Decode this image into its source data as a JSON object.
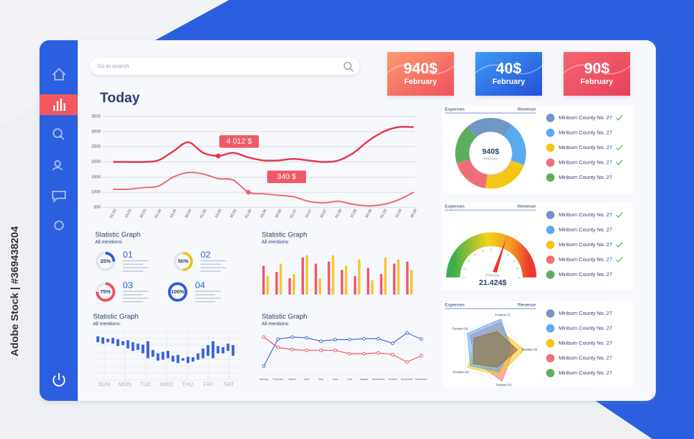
{
  "watermark": "Adobe Stock | #369438204",
  "search_placeholder": "Go to search",
  "cards": [
    {
      "value": "940$",
      "label": "February"
    },
    {
      "value": "40$",
      "label": "February"
    },
    {
      "value": "90$",
      "label": "February"
    }
  ],
  "main_chart": {
    "title": "Today",
    "ylim": [
      500,
      3500
    ],
    "yticks": [
      500,
      1000,
      1500,
      2000,
      2500,
      3000,
      3500
    ],
    "x": [
      "01.03",
      "15.03",
      "30.03",
      "01.04",
      "15.04",
      "30.04",
      "01.05",
      "15.05",
      "30.05",
      "01.06",
      "15.06",
      "30.06",
      "01.07",
      "15.07",
      "30.07",
      "01.08",
      "15.08",
      "30.08",
      "01.09",
      "15.09",
      "30.09"
    ],
    "series": [
      {
        "color": "#e6354b",
        "values": [
          2000,
          2000,
          2000,
          2050,
          2350,
          2650,
          2300,
          2200,
          2300,
          2150,
          2050,
          2050,
          2100,
          2050,
          2000,
          2050,
          2300,
          2700,
          3000,
          3150,
          3150
        ]
      },
      {
        "color": "#ee6472",
        "values": [
          1100,
          1100,
          1150,
          1200,
          1500,
          1650,
          1600,
          1450,
          1400,
          1000,
          950,
          900,
          850,
          700,
          650,
          700,
          600,
          550,
          600,
          750,
          1000
        ]
      }
    ],
    "callouts": [
      "4 012 $",
      "340 $"
    ]
  },
  "stat_donuts": {
    "title": "Statistic Graph",
    "subtitle": "All mentions:",
    "items": [
      {
        "number": "01",
        "value": 25,
        "value_label": "25%",
        "color": "#2f5fd6"
      },
      {
        "number": "02",
        "value": 50,
        "value_label": "50%",
        "color": "#f5c518"
      },
      {
        "number": "03",
        "value": 75,
        "value_label": "75%",
        "color": "#ef5262"
      },
      {
        "number": "04",
        "value": 100,
        "value_label": "100%",
        "color": "#2f5fd6"
      }
    ]
  },
  "stat_bars": {
    "title": "Statistic Graph",
    "subtitle": "All mentions:",
    "ylim": [
      0,
      100
    ],
    "series": [
      {
        "color": "#f0566a",
        "values": [
          70,
          55,
          40,
          90,
          75,
          80,
          60,
          45,
          65,
          50,
          75,
          80
        ]
      },
      {
        "color": "#f7c531",
        "values": [
          45,
          75,
          50,
          95,
          40,
          95,
          70,
          85,
          35,
          90,
          85,
          60
        ]
      }
    ]
  },
  "stat_candles": {
    "title": "Statistic Graph",
    "subtitle": "All mentions:",
    "categories": [
      "SUN",
      "MON",
      "TUE",
      "WED",
      "THU",
      "FRI",
      "SAT"
    ],
    "ylim": [
      0,
      100
    ],
    "color": "#3b63d8",
    "high": [
      90,
      88,
      85,
      87,
      84,
      80,
      82,
      78,
      75,
      73,
      80,
      62,
      55,
      58,
      60,
      50,
      52,
      45,
      48,
      47,
      55,
      65,
      72,
      80,
      70,
      68,
      75,
      72
    ],
    "low": [
      78,
      75,
      78,
      75,
      70,
      72,
      65,
      60,
      62,
      55,
      45,
      48,
      40,
      42,
      45,
      38,
      35,
      40,
      35,
      38,
      42,
      45,
      50,
      45,
      55,
      55,
      60,
      50
    ]
  },
  "stat_lines": {
    "title": "Statistic Graph",
    "subtitle": "All mentions:",
    "categories": [
      "January",
      "February",
      "March",
      "April",
      "May",
      "June",
      "July",
      "August",
      "September",
      "October",
      "November",
      "December"
    ],
    "ylim": [
      0,
      100
    ],
    "series": [
      {
        "color": "#3b63d8",
        "values": [
          20,
          85,
          90,
          88,
          80,
          84,
          84,
          86,
          86,
          75,
          100,
          85
        ]
      },
      {
        "color": "#ef5262",
        "values": [
          90,
          65,
          60,
          58,
          58,
          58,
          50,
          50,
          52,
          48,
          30,
          45
        ]
      }
    ]
  },
  "panels": [
    {
      "expenses": "Expenses",
      "revenue": "Revenue",
      "donut": {
        "center_value": "940$",
        "center_label": "February",
        "values": [
          22,
          20,
          22,
          18,
          18
        ]
      },
      "legend": [
        {
          "name": "Minburn County No. 27",
          "color": "#7096c8",
          "checked": true
        },
        {
          "name": "Minburn County No. 27",
          "color": "#5aaaf0",
          "checked": false
        },
        {
          "name": "Minburn County No. 27",
          "color": "#f5c518",
          "checked": true
        },
        {
          "name": "Minburn County No. 27",
          "color": "#ef6f78",
          "checked": true
        },
        {
          "name": "Minburn County No. 27",
          "color": "#5cae5c",
          "checked": false
        }
      ]
    },
    {
      "expenses": "Expenses",
      "revenue": "Revenue",
      "gauge": {
        "label": "February",
        "value": "21.424$"
      },
      "legend": [
        {
          "name": "Minburn County No. 27",
          "color": "#7096c8",
          "checked": true
        },
        {
          "name": "Minburn County No. 27",
          "color": "#5aaaf0",
          "checked": false
        },
        {
          "name": "Minburn County No. 27",
          "color": "#f5c518",
          "checked": true
        },
        {
          "name": "Minburn County No. 27",
          "color": "#ef6f78",
          "checked": true
        },
        {
          "name": "Minburn County No. 27",
          "color": "#5cae5c",
          "checked": false
        }
      ]
    },
    {
      "expenses": "Expenses",
      "revenue": "Revenue",
      "radar": {
        "labels": [
          "Position 01",
          "Position 02",
          "Position 03",
          "Position 04",
          "Position 05"
        ]
      },
      "legend": [
        {
          "name": "Minburn County No. 27",
          "color": "#7096c8",
          "checked": false
        },
        {
          "name": "Minburn County No. 27",
          "color": "#5aaaf0",
          "checked": false
        },
        {
          "name": "Minburn County No. 27",
          "color": "#f5c518",
          "checked": false
        },
        {
          "name": "Minburn County No. 27",
          "color": "#ef6f78",
          "checked": false
        },
        {
          "name": "Minburn County No. 27",
          "color": "#5cae5c",
          "checked": false
        }
      ]
    }
  ]
}
